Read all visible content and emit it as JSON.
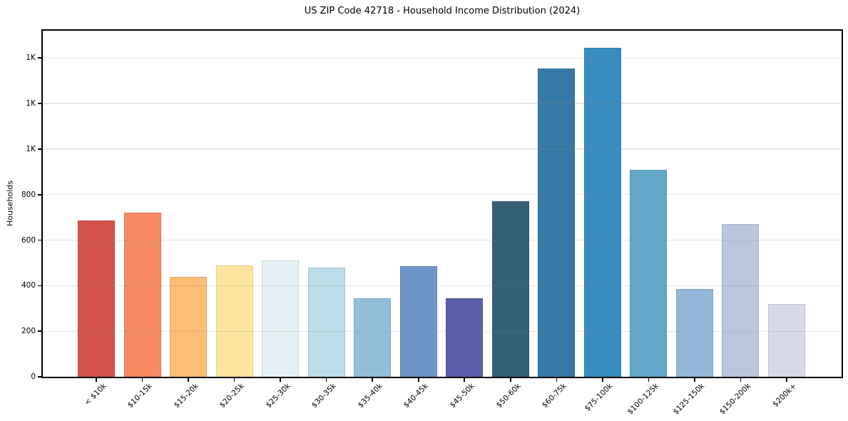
{
  "chart_data": {
    "type": "bar",
    "title": "US ZIP Code 42718 - Household Income Distribution (2024)",
    "xlabel": "",
    "ylabel": "Households",
    "categories": [
      "< $10k",
      "$10-15k",
      "$15-20k",
      "$20-25k",
      "$25-30k",
      "$30-35k",
      "$35-40k",
      "$40-45k",
      "$45-50k",
      "$50-60k",
      "$60-75k",
      "$75-100k",
      "$100-125k",
      "$125-150k",
      "$150-200k",
      "$200k+"
    ],
    "values": [
      685,
      720,
      440,
      490,
      510,
      480,
      345,
      485,
      345,
      770,
      1355,
      1445,
      910,
      385,
      670,
      320
    ],
    "bar_colors": [
      "#d5534d",
      "#f58a63",
      "#fcbd74",
      "#fde59e",
      "#e5f1f5",
      "#bbdde9",
      "#92bedc",
      "#6d95c8",
      "#5a5ea9",
      "#356077",
      "#3579a6",
      "#388cbf",
      "#60a7ca",
      "#91b8d8",
      "#b8c7de",
      "#d8d9e6"
    ],
    "ylim": [
      0,
      1520
    ],
    "yticks": {
      "values": [
        0,
        200,
        400,
        600,
        800,
        1000,
        1200,
        1400
      ],
      "labels": [
        "0",
        "200",
        "400",
        "600",
        "800",
        "1K",
        "1K",
        "1K"
      ]
    },
    "grid": "horizontal",
    "legend": "none",
    "background_color": "#ffffff",
    "spine_color": "#000000",
    "x_tick_rotation_deg": 45
  }
}
